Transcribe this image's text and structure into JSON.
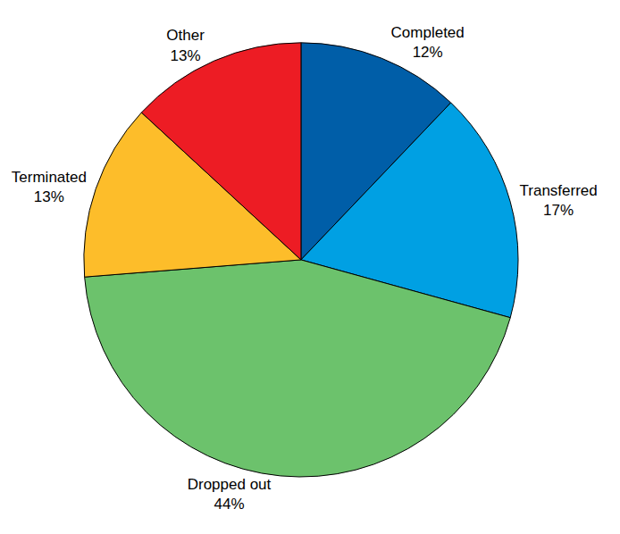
{
  "chart_data": {
    "type": "pie",
    "categories": [
      "Completed",
      "Transferred",
      "Dropped out",
      "Terminated",
      "Other"
    ],
    "values": [
      12,
      17,
      44,
      13,
      13
    ],
    "value_labels": [
      "12%",
      "17%",
      "44%",
      "13%",
      "13%"
    ],
    "colors": [
      "#005ea8",
      "#00a0e3",
      "#6cc26c",
      "#fdbd2a",
      "#ed1c24"
    ],
    "data_labels": true
  }
}
